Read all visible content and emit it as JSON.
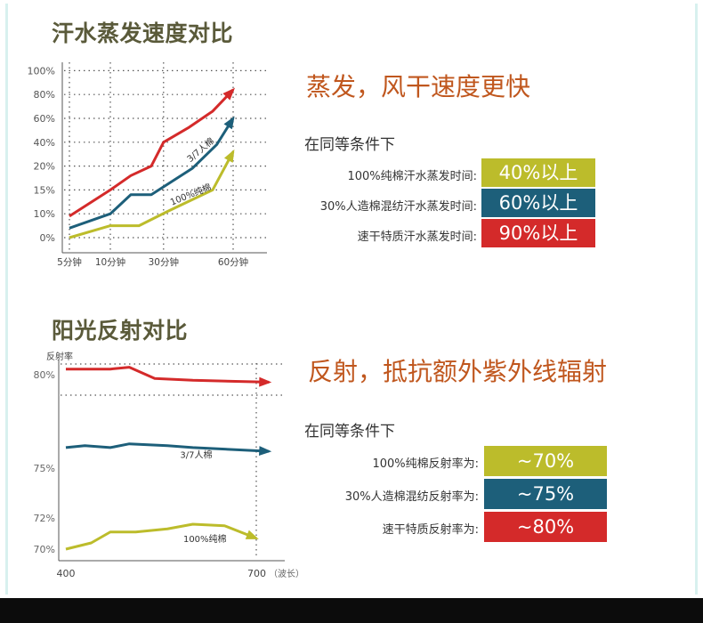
{
  "colors": {
    "red": "#d42a2a",
    "blue": "#1d5f7a",
    "olive": "#bcbc2b",
    "title": "#5a5a3a",
    "headline": "#c0571e"
  },
  "section1": {
    "title": "汗水蒸发速度对比",
    "headline": "蒸发，风干速度更快",
    "condition": "在同等条件下",
    "rows": [
      {
        "label": "100%纯棉汗水蒸发时间:",
        "value": "40%以上",
        "color": "#bcbc2b"
      },
      {
        "label": "30%人造棉混纺汗水蒸发时间:",
        "value": "60%以上",
        "color": "#1d5f7a"
      },
      {
        "label": "速干特质汗水蒸发时间:",
        "value": "90%以上",
        "color": "#d42a2a"
      }
    ]
  },
  "section2": {
    "title": "阳光反射对比",
    "headline": "反射，抵抗额外紫外线辐射",
    "condition": "在同等条件下",
    "rows": [
      {
        "label": "100%纯棉反射率为:",
        "value": "~70%",
        "color": "#bcbc2b"
      },
      {
        "label": "30%人造棉混纺反射率为:",
        "value": "~75%",
        "color": "#1d5f7a"
      },
      {
        "label": "速干特质反射率为:",
        "value": "~80%",
        "color": "#d42a2a"
      }
    ]
  },
  "chart_data": [
    {
      "type": "line",
      "title": "汗水蒸发速度对比",
      "x_ticks": [
        "5分钟",
        "10分钟",
        "30分钟",
        "60分钟"
      ],
      "y_ticks": [
        "0%",
        "10%",
        "15%",
        "20%",
        "40%",
        "60%",
        "80%",
        "100%"
      ],
      "series": [
        {
          "color": "#d42a2a",
          "points": [
            [
              0.0,
              0.9
            ],
            [
              1.0,
              2.0
            ],
            [
              1.5,
              2.6
            ],
            [
              2.0,
              3.0
            ],
            [
              2.3,
              4.0
            ],
            [
              2.9,
              4.6
            ],
            [
              3.5,
              5.3
            ],
            [
              4.0,
              6.2
            ]
          ]
        },
        {
          "name": "3/7人棉",
          "color": "#1d5f7a",
          "points": [
            [
              0.0,
              0.4
            ],
            [
              1.0,
              1.0
            ],
            [
              1.5,
              1.8
            ],
            [
              2.0,
              1.8
            ],
            [
              3.0,
              2.9
            ],
            [
              3.6,
              3.9
            ],
            [
              4.0,
              5.0
            ]
          ]
        },
        {
          "name": "100%纯棉",
          "color": "#bcbc2b",
          "points": [
            [
              0.0,
              0.0
            ],
            [
              1.0,
              0.5
            ],
            [
              1.7,
              0.5
            ],
            [
              2.4,
              1.1
            ],
            [
              3.5,
              2.0
            ],
            [
              4.0,
              3.6
            ]
          ]
        }
      ]
    },
    {
      "type": "line",
      "title": "阳光反射对比",
      "ylabel": "反射率",
      "xlabel": "（波长）",
      "x_ticks": [
        "400",
        "700"
      ],
      "y_ticks": [
        "80%",
        "75%",
        "72%",
        "70%"
      ],
      "series": [
        {
          "color": "#d42a2a",
          "points": [
            [
              400,
              80.3
            ],
            [
              470,
              80.3
            ],
            [
              500,
              80.4
            ],
            [
              540,
              79.8
            ],
            [
              600,
              79.7
            ],
            [
              720,
              79.6
            ]
          ]
        },
        {
          "name": "3/7人棉",
          "color": "#1d5f7a",
          "points": [
            [
              400,
              76.1
            ],
            [
              430,
              76.2
            ],
            [
              470,
              76.1
            ],
            [
              500,
              76.3
            ],
            [
              560,
              76.2
            ],
            [
              600,
              76.1
            ],
            [
              720,
              75.9
            ]
          ]
        },
        {
          "name": "100%纯棉",
          "color": "#bcbc2b",
          "points": [
            [
              400,
              70.0
            ],
            [
              440,
              70.4
            ],
            [
              470,
              71.1
            ],
            [
              510,
              71.1
            ],
            [
              560,
              71.3
            ],
            [
              600,
              71.6
            ],
            [
              650,
              71.5
            ],
            [
              700,
              70.7
            ]
          ]
        }
      ]
    }
  ]
}
